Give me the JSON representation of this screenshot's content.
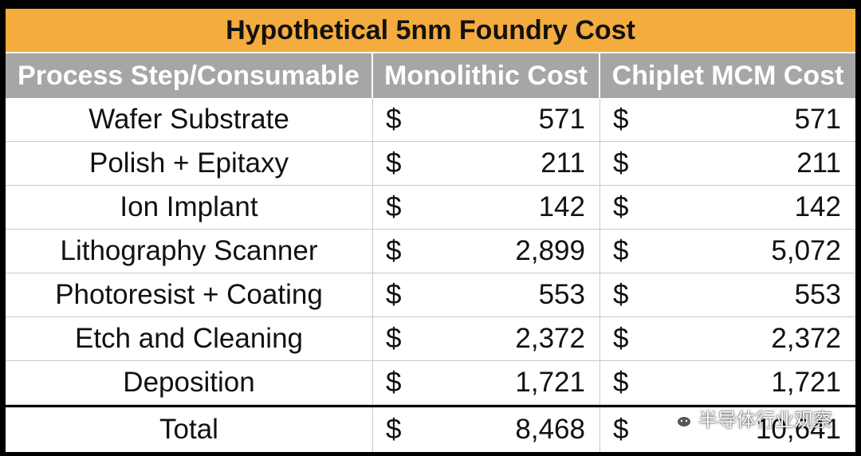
{
  "table": {
    "title": "Hypothetical 5nm Foundry Cost",
    "headers": [
      "Process Step/Consumable",
      "Monolithic Cost",
      "Chiplet MCM Cost"
    ],
    "currency_symbol": "$",
    "rows": [
      {
        "step": "Wafer Substrate",
        "monolithic": "571",
        "chiplet": "571"
      },
      {
        "step": "Polish + Epitaxy",
        "monolithic": "211",
        "chiplet": "211"
      },
      {
        "step": "Ion Implant",
        "monolithic": "142",
        "chiplet": "142"
      },
      {
        "step": "Lithography Scanner",
        "monolithic": "2,899",
        "chiplet": "5,072"
      },
      {
        "step": "Photoresist + Coating",
        "monolithic": "553",
        "chiplet": "553"
      },
      {
        "step": "Etch and Cleaning",
        "monolithic": "2,372",
        "chiplet": "2,372"
      },
      {
        "step": "Deposition",
        "monolithic": "1,721",
        "chiplet": "1,721"
      }
    ],
    "total": {
      "step": "Total",
      "monolithic": "8,468",
      "chiplet": "10,641"
    }
  },
  "watermark": {
    "text": "半导体行业观察",
    "icon": "wechat-icon"
  },
  "colors": {
    "title_bg": "#f5ac3e",
    "header_bg": "#a6a6a6",
    "background": "#000000"
  }
}
